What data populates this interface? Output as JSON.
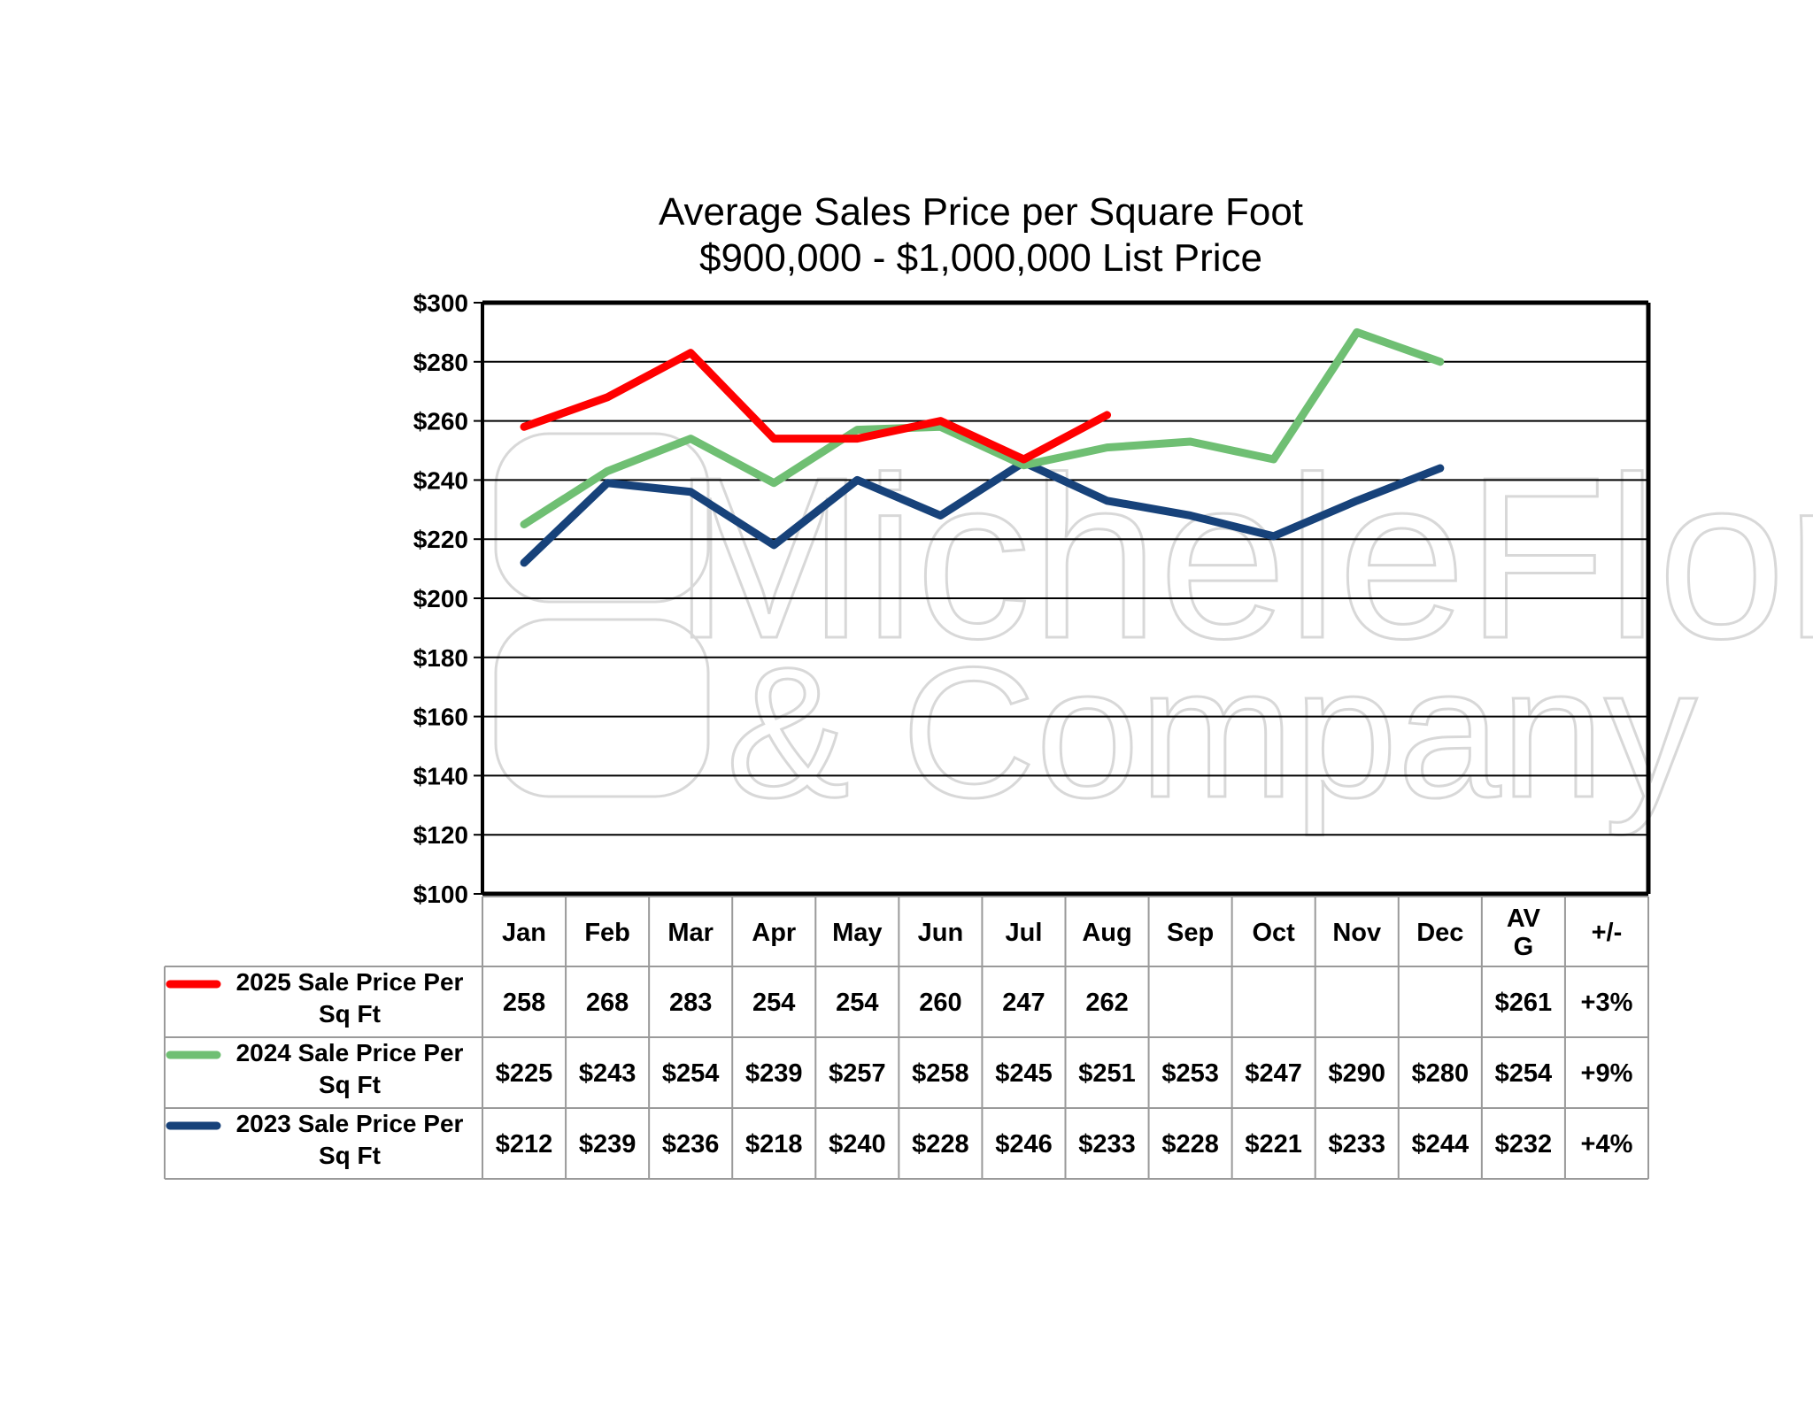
{
  "chart_data": {
    "type": "line",
    "title": "Average Sales Price per Square Foot",
    "subtitle": "$900,000 - $1,000,000 List Price",
    "categories": [
      "Jan",
      "Feb",
      "Mar",
      "Apr",
      "May",
      "Jun",
      "Jul",
      "Aug",
      "Sep",
      "Oct",
      "Nov",
      "Dec"
    ],
    "ylim": [
      100,
      300
    ],
    "yticks": [
      100,
      120,
      140,
      160,
      180,
      200,
      220,
      240,
      260,
      280,
      300
    ],
    "ytick_labels": [
      "$100",
      "$120",
      "$140",
      "$160",
      "$180",
      "$200",
      "$220",
      "$240",
      "$260",
      "$280",
      "$300"
    ],
    "grid": true,
    "legend": "data-table",
    "table_headers": [
      "Jan",
      "Feb",
      "Mar",
      "Apr",
      "May",
      "Jun",
      "Jul",
      "Aug",
      "Sep",
      "Oct",
      "Nov",
      "Dec",
      "AV\nG",
      "+/-"
    ],
    "series": [
      {
        "name": "2025 Sale Price Per Sq Ft",
        "color": "#ff0000",
        "values": [
          258,
          268,
          283,
          254,
          254,
          260,
          247,
          262,
          null,
          null,
          null,
          null
        ],
        "cells": [
          "258",
          "268",
          "283",
          "254",
          "254",
          "260",
          "247",
          "262",
          "",
          "",
          "",
          "",
          "$261",
          "+3%"
        ]
      },
      {
        "name": "2024 Sale Price Per Sq Ft",
        "color": "#6fbf73",
        "values": [
          225,
          243,
          254,
          239,
          257,
          258,
          245,
          251,
          253,
          247,
          290,
          280
        ],
        "cells": [
          "$225",
          "$243",
          "$254",
          "$239",
          "$257",
          "$258",
          "$245",
          "$251",
          "$253",
          "$247",
          "$290",
          "$280",
          "$254",
          "+9%"
        ]
      },
      {
        "name": "2023 Sale Price Per Sq Ft",
        "color": "#17427a",
        "values": [
          212,
          239,
          236,
          218,
          240,
          228,
          246,
          233,
          228,
          221,
          233,
          244
        ],
        "cells": [
          "$212",
          "$239",
          "$236",
          "$218",
          "$240",
          "$228",
          "$246",
          "$233",
          "$228",
          "$221",
          "$233",
          "$244",
          "$232",
          "+4%"
        ]
      }
    ],
    "watermark": "MicheleFlory & Company"
  }
}
